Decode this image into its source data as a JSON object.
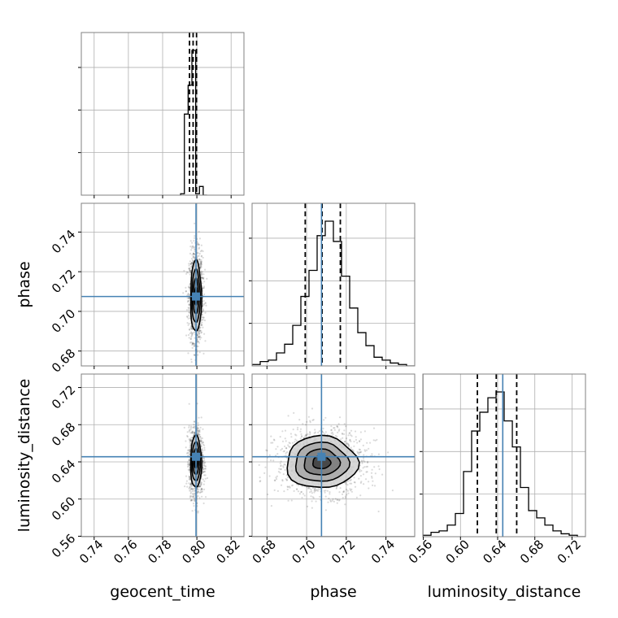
{
  "chart_data": {
    "type": "corner",
    "parameters": [
      {
        "key": "geocent_time",
        "label": "geocent_time",
        "range": [
          0.7325,
          0.8275
        ],
        "ticks": [
          0.74,
          0.76,
          0.78,
          0.8,
          0.82
        ],
        "tick_labels": [
          "0.74",
          "0.76",
          "0.78",
          "0.80",
          "0.82"
        ],
        "truth": 0.7995,
        "quantiles": [
          0.7957,
          0.7978,
          0.7998
        ]
      },
      {
        "key": "phase",
        "label": "phase",
        "range": [
          0.6725,
          0.7545
        ],
        "ticks": [
          0.68,
          0.7,
          0.72,
          0.74
        ],
        "tick_labels": [
          "0.68",
          "0.70",
          "0.72",
          "0.74"
        ],
        "truth": 0.7075,
        "quantiles": [
          0.6993,
          0.7078,
          0.717
        ]
      },
      {
        "key": "luminosity_distance",
        "label": "luminosity_distance",
        "range": [
          0.5595,
          0.7345
        ],
        "ticks": [
          0.56,
          0.6,
          0.64,
          0.68,
          0.72
        ],
        "tick_labels": [
          "0.56",
          "0.60",
          "0.64",
          "0.68",
          "0.72"
        ],
        "truth": 0.6455,
        "quantiles": [
          0.6182,
          0.6385,
          0.6605
        ]
      }
    ],
    "histograms": [
      {
        "param": "geocent_time",
        "bin_edges": [
          0.7905,
          0.7927,
          0.7949,
          0.7971,
          0.7993,
          0.8015,
          0.8037,
          0.8059
        ],
        "counts": [
          0.01,
          0.56,
          0.76,
          1.0,
          0.01,
          0.06,
          0.0
        ]
      },
      {
        "param": "phase",
        "bin_edges": [
          0.6725,
          0.6766,
          0.6807,
          0.6848,
          0.6889,
          0.693,
          0.6971,
          0.7012,
          0.7053,
          0.7094,
          0.7135,
          0.7176,
          0.7217,
          0.7258,
          0.7299,
          0.734,
          0.7381,
          0.7422,
          0.7463,
          0.7504,
          0.7545
        ],
        "counts": [
          0.01,
          0.03,
          0.04,
          0.09,
          0.15,
          0.28,
          0.48,
          0.66,
          0.9,
          1.0,
          0.86,
          0.62,
          0.4,
          0.23,
          0.14,
          0.06,
          0.04,
          0.02,
          0.01,
          0.0
        ]
      },
      {
        "param": "luminosity_distance",
        "bin_edges": [
          0.5595,
          0.5683,
          0.577,
          0.5858,
          0.5945,
          0.6033,
          0.612,
          0.6208,
          0.6295,
          0.6383,
          0.647,
          0.6558,
          0.6645,
          0.6733,
          0.682,
          0.6908,
          0.6995,
          0.7083,
          0.717,
          0.7258,
          0.7345
        ],
        "counts": [
          0.01,
          0.03,
          0.04,
          0.08,
          0.16,
          0.45,
          0.73,
          0.86,
          0.96,
          1.0,
          0.8,
          0.62,
          0.34,
          0.18,
          0.13,
          0.08,
          0.04,
          0.02,
          0.01,
          0.0
        ]
      }
    ],
    "contour_levels": [
      0.5,
      1.0,
      1.5,
      2.0
    ],
    "pairs": [
      {
        "x": "geocent_time",
        "y": "phase",
        "mean": [
          0.7995,
          0.7075
        ],
        "sd": [
          0.0016,
          0.009
        ]
      },
      {
        "x": "geocent_time",
        "y": "luminosity_distance",
        "mean": [
          0.7995,
          0.64
        ],
        "sd": [
          0.0016,
          0.014
        ]
      },
      {
        "x": "phase",
        "y": "luminosity_distance",
        "mean": [
          0.7075,
          0.6395
        ],
        "sd": [
          0.009,
          0.014
        ]
      }
    ],
    "truth_color": "#4682b4",
    "contour_color": "#000000",
    "quantile_style": "dashed",
    "grid": true
  }
}
